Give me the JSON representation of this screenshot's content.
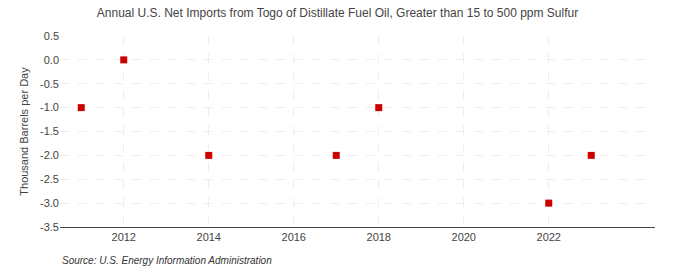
{
  "chart_data": {
    "type": "scatter",
    "title": "Annual U.S. Net Imports from Togo of Distillate Fuel Oil, Greater than 15 to 500 ppm Sulfur",
    "ylabel": "Thousand Barrels per Day",
    "annotations": [
      "Source: U.S. Energy Information Administration"
    ],
    "x": [
      2011,
      2012,
      2014,
      2017,
      2018,
      2022,
      2023
    ],
    "values": [
      -1.0,
      0.0,
      -2.0,
      -2.0,
      -1.0,
      -3.0,
      -2.0
    ],
    "color": "#cc0000",
    "marker": "square",
    "xlim": [
      2010.5,
      2024.5
    ],
    "xticks": [
      2012,
      2014,
      2016,
      2018,
      2020,
      2022
    ],
    "ylim": [
      -3.5,
      0.5
    ],
    "yticks": [
      0.5,
      {
        "value": 0.0,
        "label": "0.0"
      },
      -0.5,
      {
        "value": -1.0,
        "label": "-1.0"
      },
      -1.5,
      {
        "value": -2.0,
        "label": "-2.0"
      },
      -2.5,
      {
        "value": -3.0,
        "label": "-3.0"
      },
      -3.5
    ],
    "grid": true
  }
}
